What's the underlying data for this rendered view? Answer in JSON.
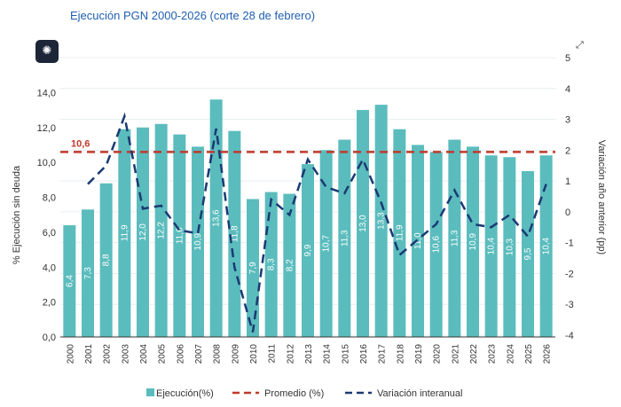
{
  "title": "Ejecución PGN 2000-2026 (corte 28 de febrero)",
  "icons": {
    "brain": "brain-icon",
    "expand": "expand-icon"
  },
  "chart_data": {
    "type": "bar",
    "categories": [
      "2000",
      "2001",
      "2002",
      "2003",
      "2004",
      "2005",
      "2006",
      "2007",
      "2008",
      "2009",
      "2010",
      "2011",
      "2012",
      "2013",
      "2014",
      "2015",
      "2016",
      "2017",
      "2018",
      "2019",
      "2020",
      "2021",
      "2022",
      "2023",
      "2024",
      "2025",
      "2026"
    ],
    "series": [
      {
        "name": "Ejecución(%)",
        "type": "bar",
        "axis": "left",
        "color": "#5bbcbd",
        "values": [
          6.4,
          7.3,
          8.8,
          11.9,
          12.0,
          12.2,
          11.6,
          10.9,
          13.6,
          11.8,
          7.9,
          8.3,
          8.2,
          9.9,
          10.7,
          11.3,
          13.0,
          13.3,
          11.9,
          11.0,
          10.6,
          11.3,
          10.9,
          10.4,
          10.3,
          9.5,
          10.4
        ],
        "labels": [
          "6,4",
          "7,3",
          "8,8",
          "11,9",
          "12,0",
          "12,2",
          "11,6",
          "10,9",
          "13,6",
          "11,8",
          "7,9",
          "8,3",
          "8,2",
          "9,9",
          "10,7",
          "11,3",
          "13,0",
          "13,3",
          "11,9",
          "11,0",
          "10,6",
          "11,3",
          "10,9",
          "10,4",
          "10,3",
          "9,5",
          "10,4"
        ]
      },
      {
        "name": "Promedio (%)",
        "type": "line",
        "axis": "left",
        "color": "#c0392b",
        "dashed": true,
        "value": 10.6,
        "label": "10,6"
      },
      {
        "name": "Variación interanual",
        "type": "line",
        "axis": "right",
        "color": "#1a3a73",
        "dashed": true,
        "values": [
          null,
          0.9,
          1.5,
          3.1,
          0.1,
          0.2,
          -0.6,
          -0.7,
          2.7,
          -1.8,
          -3.9,
          0.4,
          -0.1,
          1.7,
          0.8,
          0.6,
          1.7,
          0.3,
          -1.4,
          -0.9,
          -0.4,
          0.7,
          -0.4,
          -0.5,
          -0.1,
          -0.8,
          0.9
        ]
      }
    ],
    "ylabel": "% Ejecución sin deuda",
    "y2label": "Variación año anterior (pp)",
    "ylim": [
      0,
      16
    ],
    "y2lim": [
      -4,
      5
    ],
    "yticks": [
      "0,0",
      "2,0",
      "4,0",
      "6,0",
      "8,0",
      "10,0",
      "12,0",
      "14,0"
    ],
    "y2ticks": [
      "-4",
      "-3",
      "-2",
      "-1",
      "0",
      "1",
      "2",
      "3",
      "4",
      "5"
    ],
    "grid": true,
    "legend": "bottom"
  }
}
